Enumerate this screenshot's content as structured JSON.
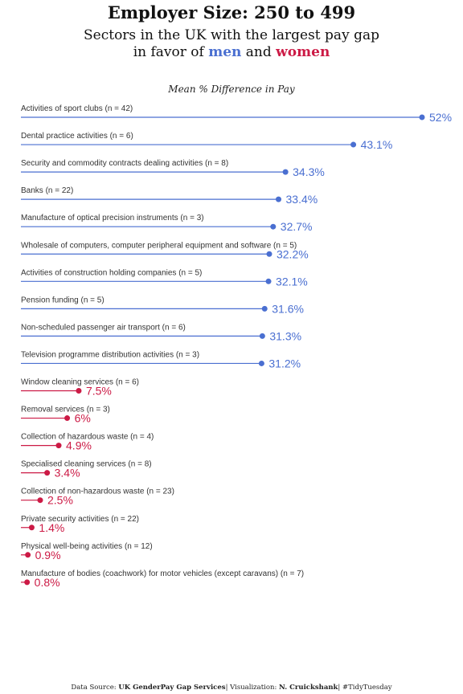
{
  "header": {
    "title": "Employer Size: 250 to 499",
    "subtitle_line1": "Sectors in the UK with the largest pay gap",
    "subtitle_line2_prefix": "in favor of",
    "subtitle_men": "men",
    "subtitle_and": "and",
    "subtitle_women": "women"
  },
  "colors": {
    "men": "#4a6fd1",
    "women": "#cc1a45",
    "label": "#333333"
  },
  "chart_data": {
    "type": "bar",
    "title": "Employer Size: 250 to 499",
    "subtitle": "Sectors in the UK with the largest pay gap in favor of men and women",
    "xlabel": "Mean % Difference in Pay",
    "xlim": [
      0,
      52
    ],
    "grid": false,
    "legend": "none",
    "series": [
      {
        "name": "men",
        "categories": [
          "Activities of sport clubs (n = 42)",
          "Dental practice activities (n = 6)",
          "Security and commodity contracts dealing activities (n = 8)",
          "Banks (n = 22)",
          "Manufacture of optical precision instruments (n = 3)",
          "Wholesale of computers, computer peripheral equipment and software (n = 5)",
          "Activities of construction holding companies (n = 5)",
          "Pension funding (n = 5)",
          "Non-scheduled passenger air transport (n = 6)",
          "Television programme distribution activities (n = 3)"
        ],
        "values": [
          52,
          43.1,
          34.3,
          33.4,
          32.7,
          32.2,
          32.1,
          31.6,
          31.3,
          31.2
        ],
        "labels": [
          "52%",
          "43.1%",
          "34.3%",
          "33.4%",
          "32.7%",
          "32.2%",
          "32.1%",
          "31.6%",
          "31.3%",
          "31.2%"
        ]
      },
      {
        "name": "women",
        "categories": [
          "Window cleaning services (n = 6)",
          "Removal services (n = 3)",
          "Collection of hazardous waste (n = 4)",
          "Specialised cleaning services (n = 8)",
          "Collection of non-hazardous waste (n = 23)",
          "Private security activities (n = 22)",
          "Physical well-being activities (n = 12)",
          "Manufacture of bodies (coachwork) for motor vehicles (except caravans) (n = 7)"
        ],
        "values": [
          7.5,
          6,
          4.9,
          3.4,
          2.5,
          1.4,
          0.9,
          0.8
        ],
        "labels": [
          "7.5%",
          "6%",
          "4.9%",
          "3.4%",
          "2.5%",
          "1.4%",
          "0.9%",
          "0.8%"
        ]
      }
    ]
  },
  "footer": {
    "source_prefix": "Data Source:",
    "source_name": "UK GenderPay Gap Services",
    "viz_prefix": "| Visualization:",
    "viz_name": "N. Cruickshank",
    "tag": "| #TidyTuesday"
  }
}
